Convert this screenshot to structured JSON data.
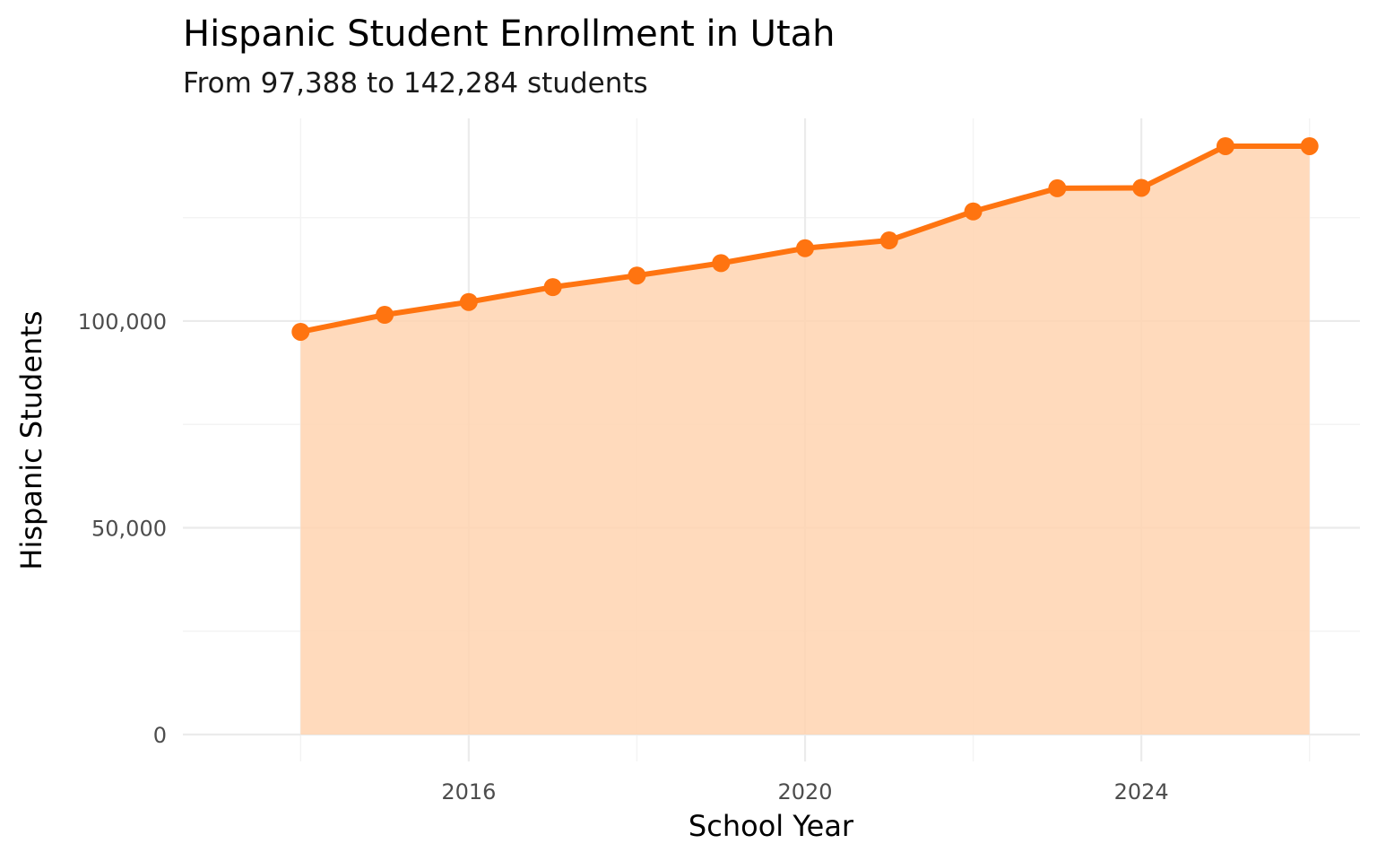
{
  "chart_data": {
    "type": "area",
    "title": "Hispanic Student Enrollment in Utah",
    "subtitle": "From 97,388 to 142,284 students",
    "xlabel": "School Year",
    "ylabel": "Hispanic Students",
    "x": [
      2014,
      2015,
      2016,
      2017,
      2018,
      2019,
      2020,
      2021,
      2022,
      2023,
      2024,
      2025,
      2026
    ],
    "values": [
      97388,
      101500,
      104600,
      108200,
      111000,
      114000,
      117600,
      119500,
      126500,
      132100,
      132200,
      142284,
      142284
    ],
    "xlim": [
      2012.6,
      2026.6
    ],
    "ylim": [
      -6500,
      149000
    ],
    "x_ticks": [
      2016,
      2020,
      2024
    ],
    "x_tick_labels": [
      "2016",
      "2020",
      "2024"
    ],
    "y_ticks": [
      0,
      50000,
      100000
    ],
    "y_tick_labels": [
      "0",
      "50,000",
      "100,000"
    ],
    "grid": true,
    "legend": "none",
    "colors": {
      "line": "#ff7410",
      "fill": "#ffd4b0",
      "grid": "#ebebeb"
    }
  }
}
